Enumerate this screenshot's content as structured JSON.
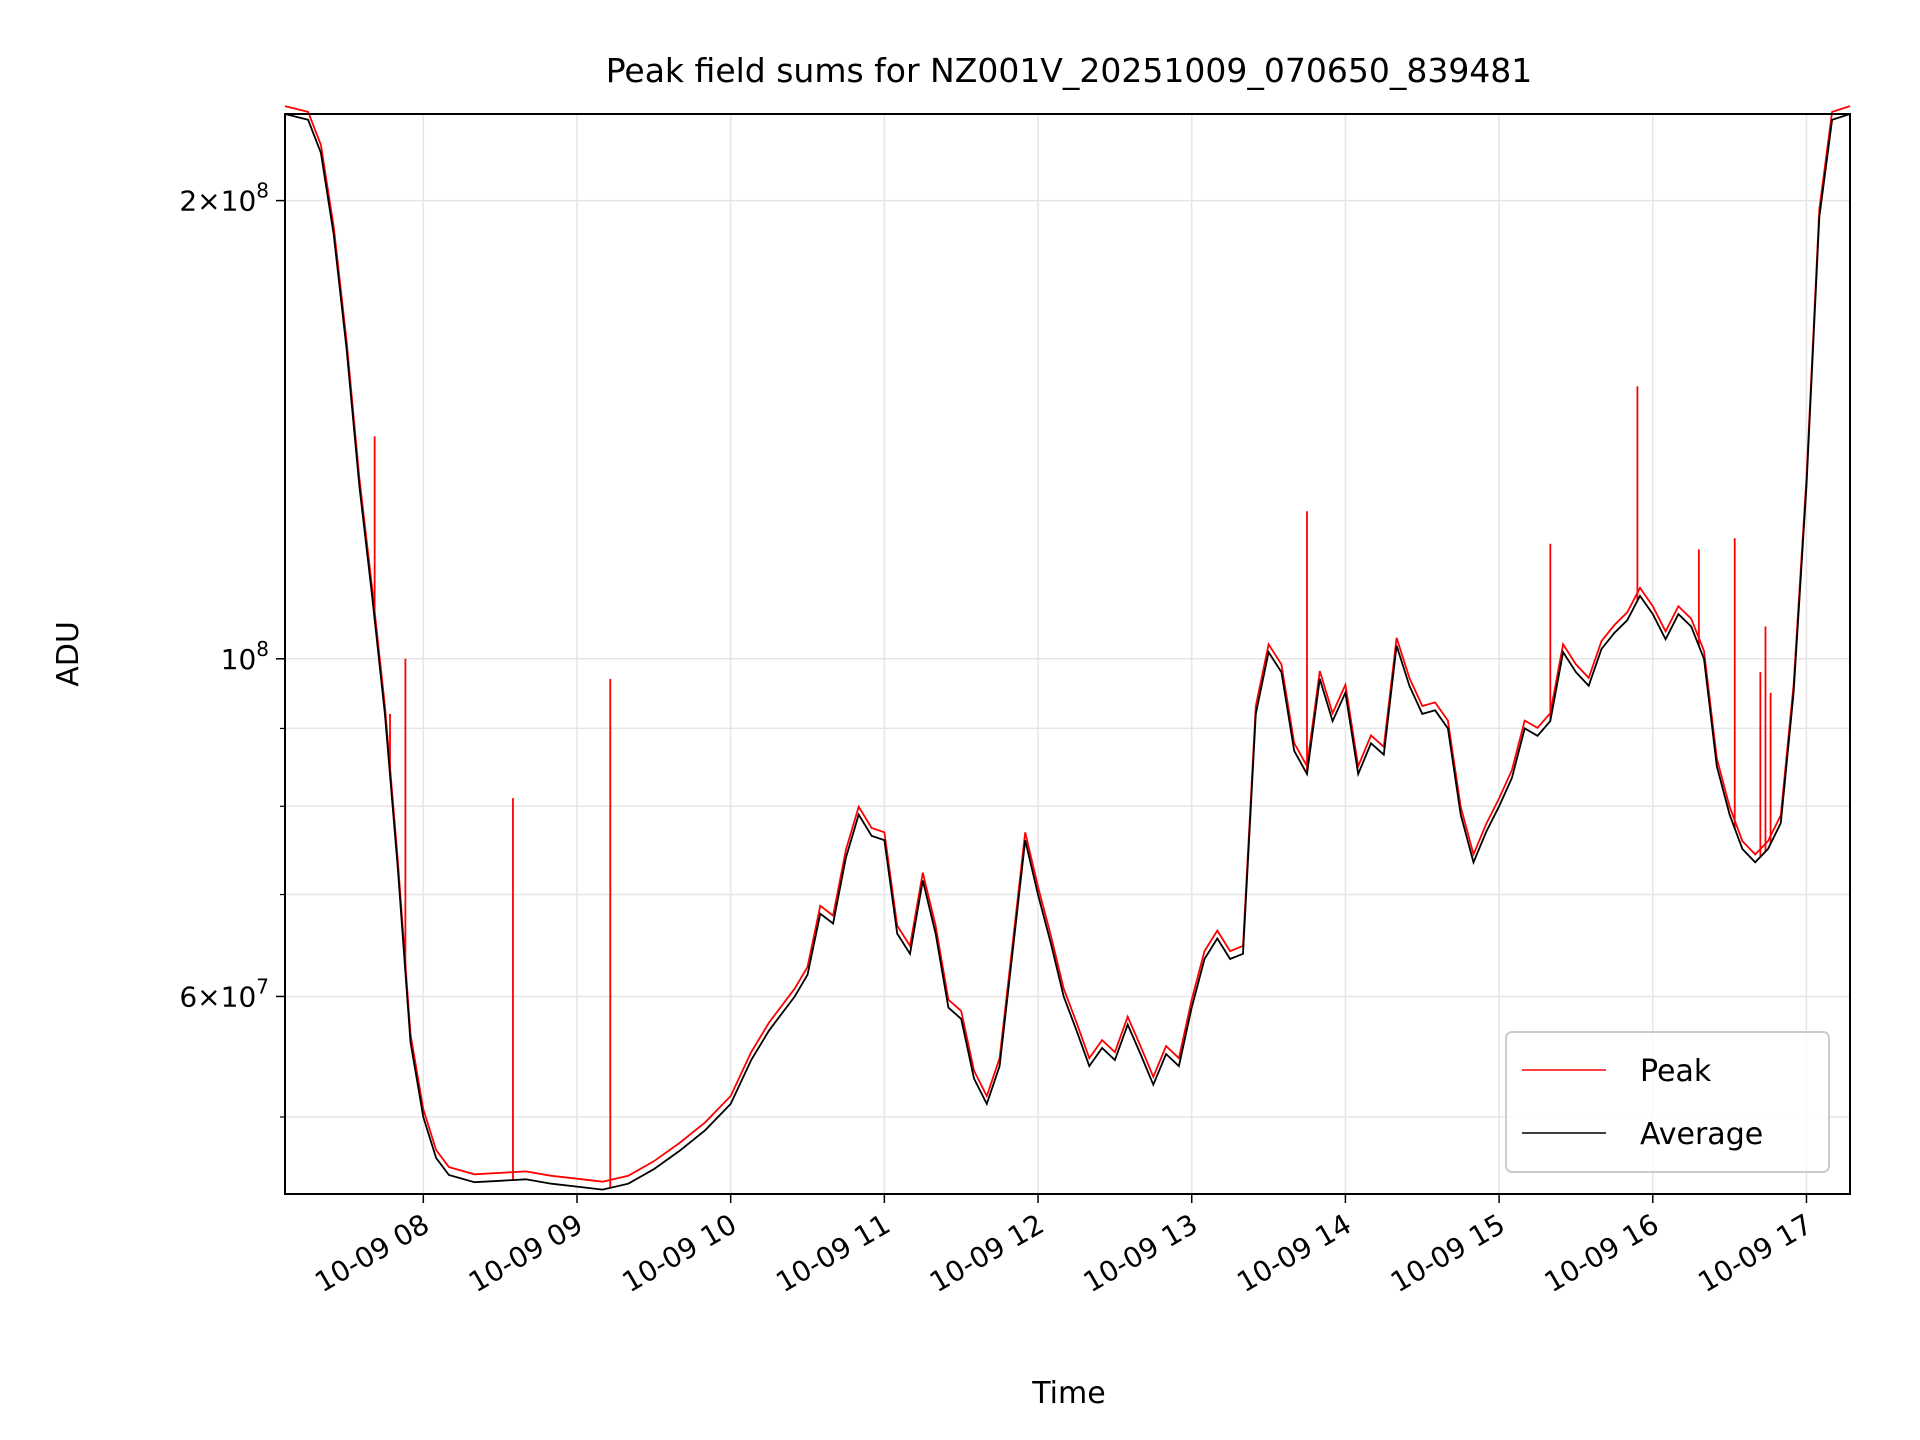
{
  "chart_data": {
    "type": "line",
    "title": "Peak field sums for NZ001V_20251009_070650_839481",
    "xlabel": "Time",
    "ylabel": "ADU",
    "yscale": "log",
    "grid": true,
    "legend_position": "lower-right",
    "xlim": [
      "2025-10-09 07:06",
      "2025-10-09 17:17"
    ],
    "ylim": [
      44500000,
      228000000
    ],
    "x_ticks": [
      {
        "value": "2025-10-09 08:00",
        "label": "10-09 08"
      },
      {
        "value": "2025-10-09 09:00",
        "label": "10-09 09"
      },
      {
        "value": "2025-10-09 10:00",
        "label": "10-09 10"
      },
      {
        "value": "2025-10-09 11:00",
        "label": "10-09 11"
      },
      {
        "value": "2025-10-09 12:00",
        "label": "10-09 12"
      },
      {
        "value": "2025-10-09 13:00",
        "label": "10-09 13"
      },
      {
        "value": "2025-10-09 14:00",
        "label": "10-09 14"
      },
      {
        "value": "2025-10-09 15:00",
        "label": "10-09 15"
      },
      {
        "value": "2025-10-09 16:00",
        "label": "10-09 16"
      },
      {
        "value": "2025-10-09 17:00",
        "label": "10-09 17"
      }
    ],
    "y_ticks": [
      {
        "value": 200000000,
        "base": "2",
        "exp": "8",
        "label": "2 × 10^8"
      },
      {
        "value": 100000000,
        "base": "",
        "exp": "8",
        "label": "10^8"
      },
      {
        "value": 60000000,
        "base": "6",
        "exp": "7",
        "label": "6 × 10^7"
      }
    ],
    "y_minor_ticks": [
      50000000,
      70000000,
      80000000,
      90000000
    ],
    "series": [
      {
        "name": "Peak",
        "color": "#ff0000",
        "spikes": [
          {
            "x": "2025-10-09 07:41",
            "y": 140000000
          },
          {
            "x": "2025-10-09 07:47",
            "y": 92000000
          },
          {
            "x": "2025-10-09 07:53",
            "y": 100000000
          },
          {
            "x": "2025-10-09 08:35",
            "y": 81000000
          },
          {
            "x": "2025-10-09 09:13",
            "y": 97000000
          },
          {
            "x": "2025-10-09 13:45",
            "y": 125000000
          },
          {
            "x": "2025-10-09 15:20",
            "y": 119000000
          },
          {
            "x": "2025-10-09 15:54",
            "y": 151000000
          },
          {
            "x": "2025-10-09 16:18",
            "y": 118000000
          },
          {
            "x": "2025-10-09 16:32",
            "y": 120000000
          },
          {
            "x": "2025-10-09 16:42",
            "y": 98000000
          },
          {
            "x": "2025-10-09 16:44",
            "y": 105000000
          },
          {
            "x": "2025-10-09 16:46",
            "y": 95000000
          }
        ]
      },
      {
        "name": "Average",
        "color": "#000000",
        "points": [
          [
            "2025-10-09 07:06",
            228000000
          ],
          [
            "2025-10-09 07:15",
            226000000
          ],
          [
            "2025-10-09 07:20",
            215000000
          ],
          [
            "2025-10-09 07:25",
            190000000
          ],
          [
            "2025-10-09 07:30",
            160000000
          ],
          [
            "2025-10-09 07:35",
            130000000
          ],
          [
            "2025-10-09 07:40",
            110000000
          ],
          [
            "2025-10-09 07:45",
            92000000
          ],
          [
            "2025-10-09 07:50",
            73000000
          ],
          [
            "2025-10-09 07:55",
            56000000
          ],
          [
            "2025-10-09 08:00",
            50000000
          ],
          [
            "2025-10-09 08:05",
            47000000
          ],
          [
            "2025-10-09 08:10",
            45800000
          ],
          [
            "2025-10-09 08:20",
            45300000
          ],
          [
            "2025-10-09 08:30",
            45400000
          ],
          [
            "2025-10-09 08:40",
            45500000
          ],
          [
            "2025-10-09 08:50",
            45200000
          ],
          [
            "2025-10-09 09:00",
            45000000
          ],
          [
            "2025-10-09 09:10",
            44800000
          ],
          [
            "2025-10-09 09:20",
            45200000
          ],
          [
            "2025-10-09 09:30",
            46200000
          ],
          [
            "2025-10-09 09:40",
            47500000
          ],
          [
            "2025-10-09 09:50",
            49000000
          ],
          [
            "2025-10-09 10:00",
            51000000
          ],
          [
            "2025-10-09 10:08",
            54500000
          ],
          [
            "2025-10-09 10:15",
            57000000
          ],
          [
            "2025-10-09 10:25",
            60000000
          ],
          [
            "2025-10-09 10:30",
            62000000
          ],
          [
            "2025-10-09 10:35",
            68000000
          ],
          [
            "2025-10-09 10:40",
            67000000
          ],
          [
            "2025-10-09 10:45",
            74000000
          ],
          [
            "2025-10-09 10:50",
            79000000
          ],
          [
            "2025-10-09 10:55",
            76500000
          ],
          [
            "2025-10-09 11:00",
            76000000
          ],
          [
            "2025-10-09 11:05",
            66000000
          ],
          [
            "2025-10-09 11:10",
            64000000
          ],
          [
            "2025-10-09 11:15",
            71500000
          ],
          [
            "2025-10-09 11:20",
            66000000
          ],
          [
            "2025-10-09 11:25",
            59000000
          ],
          [
            "2025-10-09 11:30",
            58000000
          ],
          [
            "2025-10-09 11:35",
            53000000
          ],
          [
            "2025-10-09 11:40",
            51000000
          ],
          [
            "2025-10-09 11:45",
            54000000
          ],
          [
            "2025-10-09 11:50",
            64000000
          ],
          [
            "2025-10-09 11:55",
            76000000
          ],
          [
            "2025-10-09 12:00",
            70000000
          ],
          [
            "2025-10-09 12:05",
            65000000
          ],
          [
            "2025-10-09 12:10",
            60000000
          ],
          [
            "2025-10-09 12:15",
            57000000
          ],
          [
            "2025-10-09 12:20",
            54000000
          ],
          [
            "2025-10-09 12:25",
            55500000
          ],
          [
            "2025-10-09 12:30",
            54500000
          ],
          [
            "2025-10-09 12:35",
            57500000
          ],
          [
            "2025-10-09 12:40",
            55000000
          ],
          [
            "2025-10-09 12:45",
            52500000
          ],
          [
            "2025-10-09 12:50",
            55000000
          ],
          [
            "2025-10-09 12:55",
            54000000
          ],
          [
            "2025-10-09 13:00",
            59000000
          ],
          [
            "2025-10-09 13:05",
            63500000
          ],
          [
            "2025-10-09 13:10",
            65500000
          ],
          [
            "2025-10-09 13:15",
            63500000
          ],
          [
            "2025-10-09 13:20",
            64000000
          ],
          [
            "2025-10-09 13:25",
            92000000
          ],
          [
            "2025-10-09 13:30",
            101000000
          ],
          [
            "2025-10-09 13:35",
            98000000
          ],
          [
            "2025-10-09 13:40",
            87000000
          ],
          [
            "2025-10-09 13:45",
            84000000
          ],
          [
            "2025-10-09 13:50",
            97000000
          ],
          [
            "2025-10-09 13:55",
            91000000
          ],
          [
            "2025-10-09 14:00",
            95000000
          ],
          [
            "2025-10-09 14:05",
            84000000
          ],
          [
            "2025-10-09 14:10",
            88000000
          ],
          [
            "2025-10-09 14:15",
            86500000
          ],
          [
            "2025-10-09 14:20",
            102000000
          ],
          [
            "2025-10-09 14:25",
            96000000
          ],
          [
            "2025-10-09 14:30",
            92000000
          ],
          [
            "2025-10-09 14:35",
            92500000
          ],
          [
            "2025-10-09 14:40",
            90000000
          ],
          [
            "2025-10-09 14:45",
            79000000
          ],
          [
            "2025-10-09 14:50",
            73500000
          ],
          [
            "2025-10-09 14:55",
            77000000
          ],
          [
            "2025-10-09 15:00",
            80000000
          ],
          [
            "2025-10-09 15:05",
            83500000
          ],
          [
            "2025-10-09 15:10",
            90000000
          ],
          [
            "2025-10-09 15:15",
            89000000
          ],
          [
            "2025-10-09 15:20",
            91000000
          ],
          [
            "2025-10-09 15:25",
            101000000
          ],
          [
            "2025-10-09 15:30",
            98000000
          ],
          [
            "2025-10-09 15:35",
            96000000
          ],
          [
            "2025-10-09 15:40",
            101500000
          ],
          [
            "2025-10-09 15:45",
            104000000
          ],
          [
            "2025-10-09 15:50",
            106000000
          ],
          [
            "2025-10-09 15:55",
            110000000
          ],
          [
            "2025-10-09 16:00",
            107000000
          ],
          [
            "2025-10-09 16:05",
            103000000
          ],
          [
            "2025-10-09 16:10",
            107000000
          ],
          [
            "2025-10-09 16:15",
            105000000
          ],
          [
            "2025-10-09 16:20",
            100000000
          ],
          [
            "2025-10-09 16:25",
            85000000
          ],
          [
            "2025-10-09 16:30",
            79000000
          ],
          [
            "2025-10-09 16:35",
            75000000
          ],
          [
            "2025-10-09 16:40",
            73500000
          ],
          [
            "2025-10-09 16:45",
            75000000
          ],
          [
            "2025-10-09 16:50",
            78000000
          ],
          [
            "2025-10-09 16:55",
            95000000
          ],
          [
            "2025-10-09 17:00",
            130000000
          ],
          [
            "2025-10-09 17:05",
            195000000
          ],
          [
            "2025-10-09 17:10",
            226000000
          ],
          [
            "2025-10-09 17:17",
            228000000
          ]
        ]
      }
    ]
  }
}
